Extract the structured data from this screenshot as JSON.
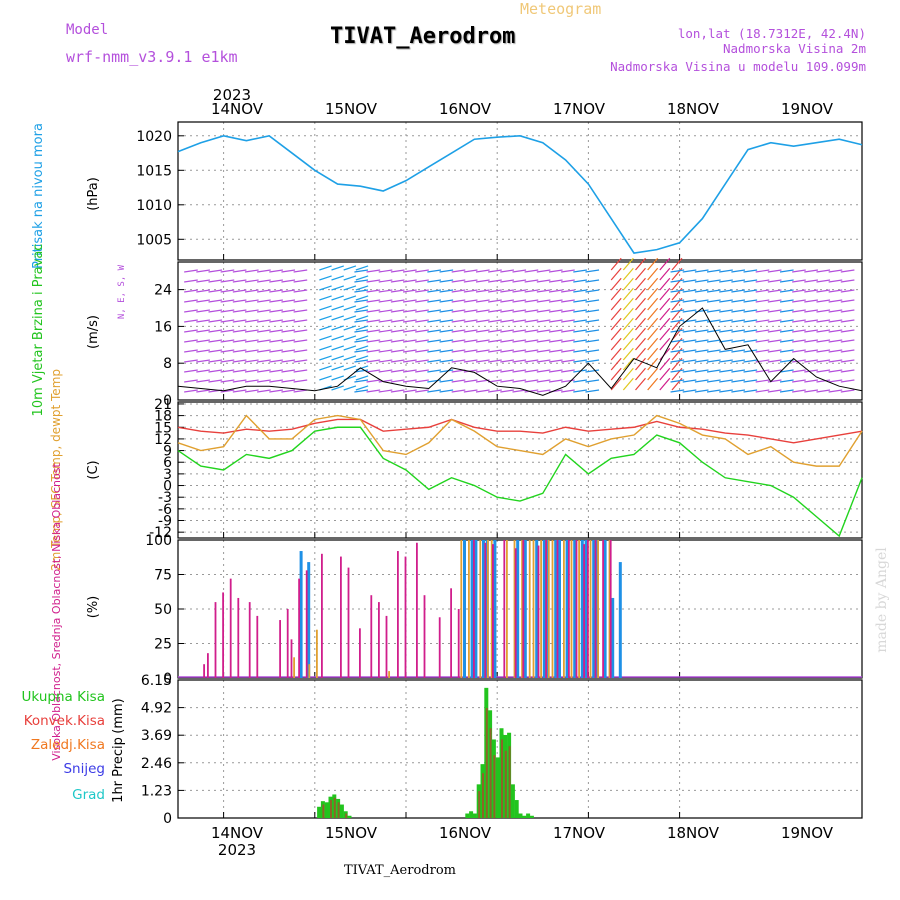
{
  "header": {
    "model_label": "Model",
    "model_name": "wrf-nmm_v3.9.1 e1km",
    "title": "TIVAT_Aerodrom",
    "meteogram_label": "Meteogram",
    "lonlat": "lon,lat (18.7312E, 42.4N)",
    "altitude": "Nadmorska Visina 2m",
    "model_altitude": "Nadmorska Visina u modelu 109.099m"
  },
  "footer": {
    "station": "TIVAT_Aerodrom",
    "watermark": "made by Angel"
  },
  "colors": {
    "pressure": "#1ea0e6",
    "wind_green": "#22c41e",
    "temp2m": "#e8403c",
    "sfc": "#e0a030",
    "dewpt": "#22d41e",
    "high_cloud": "#1e90e6",
    "mid_cloud": "#e0a030",
    "low_cloud": "#d01e8c",
    "convective": "#e8403c",
    "frozen": "#f07820",
    "snow": "#3c3ce6",
    "hail": "#1ec8c8",
    "purple": "#b450dc"
  },
  "chart_data": [
    {
      "type": "line",
      "panel": "pressure",
      "ylabel": "Pritisak na nivou mora",
      "unit": "(hPa)",
      "x_ticks_top": [
        "14NOV",
        "15NOV",
        "16NOV",
        "17NOV",
        "18NOV",
        "19NOV"
      ],
      "year_top": "2023",
      "yticks": [
        1005,
        1010,
        1015,
        1020
      ],
      "ylim": [
        1002,
        1022
      ],
      "x": [
        0,
        6,
        12,
        18,
        24,
        30,
        36,
        42,
        48,
        54,
        60,
        66,
        72,
        78,
        84,
        90,
        96,
        102,
        108,
        114,
        120,
        126,
        132,
        138,
        144,
        150,
        156,
        162,
        168,
        174,
        180
      ],
      "values": [
        1017.7,
        1019,
        1020,
        1019.3,
        1020,
        1017.5,
        1015,
        1013,
        1012.7,
        1012,
        1013.5,
        1015.5,
        1017.5,
        1019.5,
        1019.8,
        1020,
        1019,
        1016.5,
        1013,
        1008,
        1003,
        1003.5,
        1004.5,
        1008,
        1013,
        1018,
        1019,
        1018.5,
        1019,
        1019.5,
        1018.7
      ],
      "grid": true
    },
    {
      "type": "line",
      "panel": "wind",
      "ylabel": "10m Vjetar Brzina i Pravac",
      "unit": "(m/s)",
      "direction_legend": "N, E, S, W",
      "yticks": [
        0,
        8,
        16,
        24
      ],
      "ylim": [
        0,
        30
      ],
      "x": [
        0,
        6,
        12,
        18,
        24,
        30,
        36,
        42,
        48,
        54,
        60,
        66,
        72,
        78,
        84,
        90,
        96,
        102,
        108,
        114,
        120,
        126,
        132,
        138,
        144,
        150,
        156,
        162,
        168,
        174,
        180
      ],
      "values": [
        3,
        2.5,
        2,
        3,
        3,
        2.5,
        2,
        3,
        7,
        4,
        3,
        2.5,
        7,
        6,
        3,
        2.5,
        1,
        3,
        8,
        2.5,
        9,
        7,
        16,
        20,
        11,
        12,
        4,
        9,
        5,
        3,
        2
      ],
      "grid": true
    },
    {
      "type": "line",
      "panel": "temperature",
      "ylabel": "2m Temp, SFC Temp, dewpt Temp",
      "unit": "(C)",
      "yticks": [
        -12,
        -9,
        -6,
        -3,
        0,
        3,
        6,
        9,
        12,
        15,
        18,
        21
      ],
      "ylim": [
        -13.5,
        21.5
      ],
      "x": [
        0,
        6,
        12,
        18,
        24,
        30,
        36,
        42,
        48,
        54,
        60,
        66,
        72,
        78,
        84,
        90,
        96,
        102,
        108,
        114,
        120,
        126,
        132,
        138,
        144,
        150,
        156,
        162,
        168,
        174,
        180
      ],
      "series": [
        {
          "name": "2m Temp",
          "values": [
            15,
            14,
            13.5,
            14.5,
            14,
            14.5,
            16,
            17,
            17,
            14,
            14.5,
            15,
            17,
            15,
            14,
            14,
            13.5,
            15,
            14,
            14.5,
            15,
            16.5,
            15,
            14.5,
            13.5,
            13,
            12,
            11,
            12,
            13,
            14
          ]
        },
        {
          "name": "SFC Temp",
          "values": [
            11,
            9,
            10,
            18,
            12,
            12,
            17,
            18,
            17,
            9,
            8,
            11,
            17,
            14,
            10,
            9,
            8,
            12,
            10,
            12,
            13,
            18,
            16,
            13,
            12,
            8,
            10,
            6,
            5,
            5,
            14
          ]
        },
        {
          "name": "dewpt Temp",
          "values": [
            9,
            5,
            4,
            8,
            7,
            9,
            14,
            15,
            15,
            7,
            4,
            -1,
            2,
            0,
            -3,
            -4,
            -2,
            8,
            3,
            7,
            8,
            13,
            11,
            6,
            2,
            1,
            0,
            -3,
            -8,
            -13,
            2
          ]
        }
      ],
      "grid": true
    },
    {
      "type": "bar",
      "panel": "clouds",
      "ylabel": "Visoka Oblacnost, Srednja Oblacnost, Niska Oblacnost",
      "unit": "(%)",
      "yticks": [
        0,
        25,
        50,
        75,
        100
      ],
      "ylim": [
        0,
        100
      ],
      "series": [
        {
          "name": "Visoka Oblacnost",
          "x": [
            32,
            34,
            75,
            77,
            78,
            80,
            81,
            83,
            89,
            91,
            94,
            96,
            97,
            99,
            100,
            102,
            104,
            106,
            107,
            109,
            110,
            112,
            114,
            116
          ],
          "values": [
            92,
            84,
            100,
            100,
            100,
            100,
            100,
            100,
            100,
            100,
            100,
            100,
            100,
            100,
            100,
            100,
            100,
            100,
            100,
            100,
            100,
            100,
            58,
            84
          ]
        },
        {
          "name": "Srednja Oblacnost",
          "x": [
            30,
            34,
            36,
            55,
            74,
            76,
            79,
            81,
            82,
            86,
            88,
            90,
            92,
            93,
            95,
            97,
            98,
            101,
            103,
            105,
            108,
            110,
            113
          ],
          "values": [
            15,
            10,
            35,
            5,
            100,
            100,
            100,
            100,
            100,
            100,
            100,
            100,
            100,
            100,
            100,
            100,
            100,
            100,
            100,
            100,
            100,
            100,
            100
          ]
        },
        {
          "name": "Niska Oblacnost",
          "x": [
            6,
            7,
            9,
            11,
            13,
            15,
            18,
            20,
            26,
            28,
            29,
            31,
            33,
            37,
            42,
            44,
            47,
            50,
            52,
            54,
            57,
            59,
            62,
            64,
            68,
            71,
            73,
            77,
            80,
            82,
            85,
            88,
            90,
            94,
            96,
            99,
            102,
            104,
            106,
            107,
            109,
            111,
            113
          ],
          "values": [
            10,
            18,
            55,
            62,
            72,
            58,
            55,
            45,
            42,
            50,
            28,
            72,
            78,
            90,
            88,
            80,
            36,
            60,
            55,
            45,
            92,
            88,
            98,
            60,
            44,
            65,
            50,
            100,
            98,
            97,
            100,
            94,
            100,
            96,
            100,
            100,
            100,
            100,
            97,
            100,
            100,
            100,
            100
          ]
        }
      ],
      "grid": true
    },
    {
      "type": "bar",
      "panel": "precipitation",
      "ylabel": "1hr Precip",
      "unit": "(mm)",
      "legend": [
        "Ukupna Kisa",
        "Konvek.Kisa",
        "Zaledj.Kisa",
        "Snijeg",
        "Grad"
      ],
      "yticks": [
        0,
        1.23,
        2.46,
        3.69,
        4.92,
        6.15
      ],
      "ylim": [
        0,
        6.15
      ],
      "x_ticks_bottom": [
        "14NOV",
        "15NOV",
        "16NOV",
        "17NOV",
        "18NOV",
        "19NOV"
      ],
      "year_bottom": "2023",
      "series": [
        {
          "name": "Ukupna Kisa",
          "x": [
            37,
            38,
            39,
            40,
            41,
            42,
            43,
            44,
            45,
            76,
            77,
            78,
            79,
            80,
            81,
            82,
            83,
            84,
            85,
            86,
            87,
            88,
            89,
            90,
            91,
            92,
            93
          ],
          "values": [
            0.5,
            0.75,
            0.7,
            0.95,
            1.05,
            0.85,
            0.6,
            0.3,
            0.1,
            0.2,
            0.3,
            0.2,
            1.5,
            2.4,
            5.8,
            4.8,
            3.5,
            2.7,
            4.0,
            3.7,
            3.8,
            1.5,
            0.8,
            0.2,
            0.1,
            0.2,
            0.1
          ]
        },
        {
          "name": "Konvek.Kisa",
          "x": [
            38,
            40,
            41,
            42,
            44,
            79,
            80,
            81,
            82,
            83,
            85,
            86,
            87
          ],
          "values": [
            0.6,
            0.8,
            0.9,
            0.7,
            0.2,
            1.2,
            2.0,
            4.9,
            4.0,
            2.8,
            3.5,
            3.0,
            3.2
          ]
        }
      ],
      "grid": true
    }
  ]
}
